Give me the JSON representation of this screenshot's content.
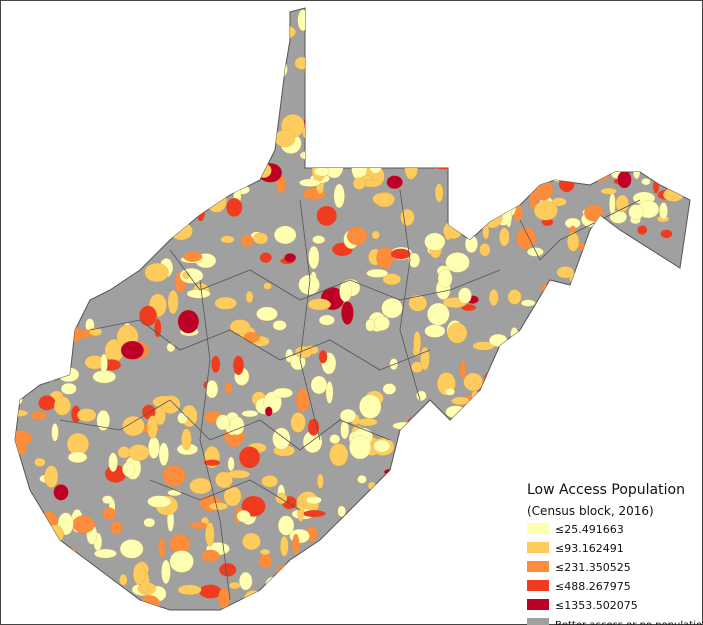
{
  "legend": {
    "title": "Low Access Population",
    "subtitle": "(Census block, 2016)",
    "items": [
      {
        "label": "≤25.491663",
        "color": "#ffffb2"
      },
      {
        "label": "≤93.162491",
        "color": "#fecc5c"
      },
      {
        "label": "≤231.350525",
        "color": "#fd8d3c"
      },
      {
        "label": "≤488.267975",
        "color": "#f03b20"
      },
      {
        "label": "≤1353.502075",
        "color": "#bd0026"
      },
      {
        "label": "Better access or no population",
        "color": "#a0a0a0"
      }
    ]
  }
}
